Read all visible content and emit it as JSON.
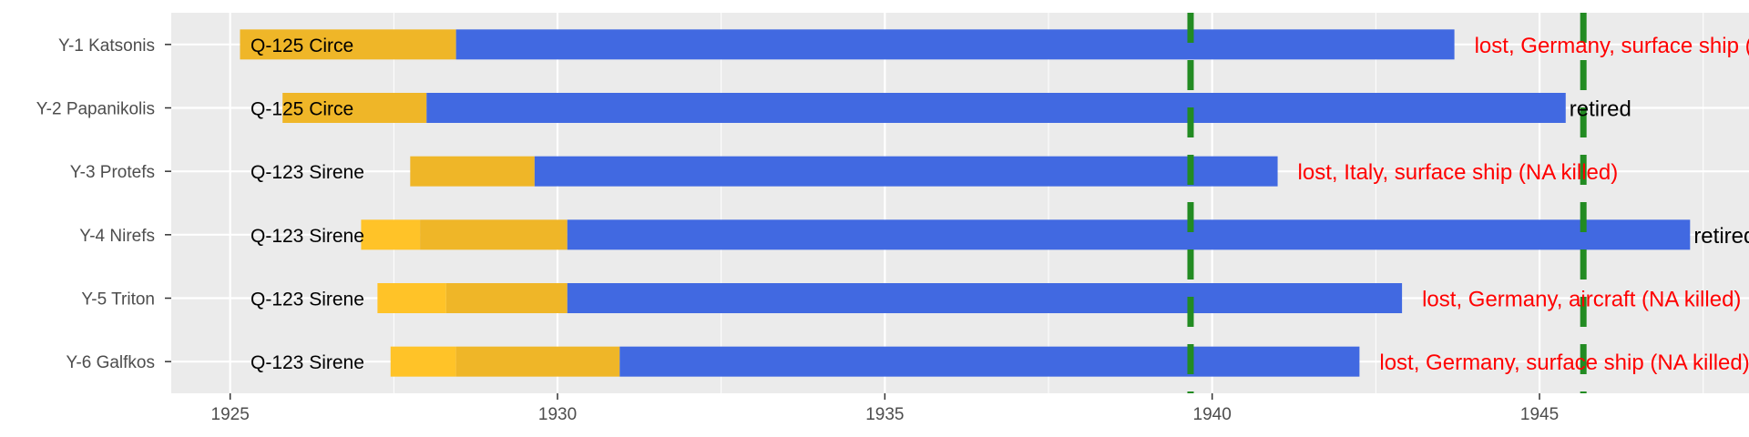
{
  "chart_data": {
    "type": "bar",
    "orientation": "horizontal-timeline",
    "title": "",
    "xlabel": "",
    "ylabel": "",
    "xlim": [
      1924.1,
      1948.2
    ],
    "x_ticks": [
      1925,
      1930,
      1935,
      1940,
      1945
    ],
    "x_tick_labels": [
      "1925",
      "1930",
      "1935",
      "1940",
      "1945"
    ],
    "grid": true,
    "legend": "none",
    "colors": {
      "panel": "#EBEBEB",
      "grid": "#FFFFFF",
      "construction_early": "#FFC328",
      "construction_late": "#EFB628",
      "service": "#4169E1",
      "event_line": "#228B22",
      "fate_lost": "#FF0000",
      "fate_retired": "#000000"
    },
    "event_lines": [
      1939.67,
      1945.67
    ],
    "categories": [
      "Y-1 Katsonis",
      "Y-2 Papanikolis",
      "Y-3 Protefs",
      "Y-4 Nirefs",
      "Y-5 Triton",
      "Y-6 Galfkos"
    ],
    "series": [
      {
        "name": "Y-1 Katsonis",
        "class": "Q-125 Circe",
        "phases": [
          {
            "start": 1925.15,
            "end": 1928.45,
            "color_key": "construction_late"
          },
          {
            "start": 1928.45,
            "end": 1943.7,
            "color_key": "service"
          }
        ],
        "fate": "lost, Germany, surface ship (NA killed)",
        "fate_kind": "lost"
      },
      {
        "name": "Y-2 Papanikolis",
        "class": "Q-125 Circe",
        "phases": [
          {
            "start": 1925.8,
            "end": 1928.0,
            "color_key": "construction_late"
          },
          {
            "start": 1928.0,
            "end": 1945.4,
            "color_key": "service"
          }
        ],
        "fate": "retired",
        "fate_kind": "retired"
      },
      {
        "name": "Y-3 Protefs",
        "class": "Q-123 Sirene",
        "phases": [
          {
            "start": 1927.75,
            "end": 1929.65,
            "color_key": "construction_late"
          },
          {
            "start": 1929.65,
            "end": 1941.0,
            "color_key": "service"
          }
        ],
        "fate": "lost, Italy, surface ship (NA killed)",
        "fate_kind": "lost"
      },
      {
        "name": "Y-4 Nirefs",
        "class": "Q-123 Sirene",
        "phases": [
          {
            "start": 1927.0,
            "end": 1927.9,
            "color_key": "construction_early"
          },
          {
            "start": 1927.9,
            "end": 1930.15,
            "color_key": "construction_late"
          },
          {
            "start": 1930.15,
            "end": 1947.3,
            "color_key": "service"
          }
        ],
        "fate": "retired",
        "fate_kind": "retired"
      },
      {
        "name": "Y-5 Triton",
        "class": "Q-123 Sirene",
        "phases": [
          {
            "start": 1927.25,
            "end": 1928.3,
            "color_key": "construction_early"
          },
          {
            "start": 1928.3,
            "end": 1930.15,
            "color_key": "construction_late"
          },
          {
            "start": 1930.15,
            "end": 1942.9,
            "color_key": "service"
          }
        ],
        "fate": "lost, Germany, aircraft (NA killed)",
        "fate_kind": "lost"
      },
      {
        "name": "Y-6 Galfkos",
        "class": "Q-123 Sirene",
        "phases": [
          {
            "start": 1927.45,
            "end": 1928.45,
            "color_key": "construction_early"
          },
          {
            "start": 1928.45,
            "end": 1930.95,
            "color_key": "construction_late"
          },
          {
            "start": 1930.95,
            "end": 1942.25,
            "color_key": "service"
          }
        ],
        "fate": "lost, Germany, surface ship (NA killed)",
        "fate_kind": "lost"
      }
    ]
  }
}
